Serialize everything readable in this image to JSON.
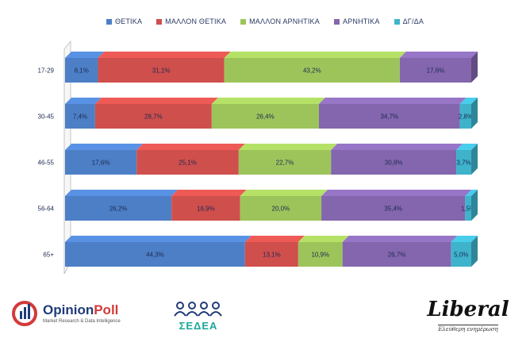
{
  "chart_data": {
    "type": "bar",
    "stacked": true,
    "orientation": "horizontal",
    "percent_scale": true,
    "categories": [
      "17-29",
      "30-45",
      "46-55",
      "56-64",
      "65+"
    ],
    "series": [
      {
        "name": "ΘΕΤΙΚΑ",
        "color": "#4d7fc6",
        "values": [
          8.1,
          7.4,
          17.6,
          26.2,
          44.3
        ],
        "labels": [
          "8,1%",
          "7,4%",
          "17,6%",
          "26,2%",
          "44,3%"
        ]
      },
      {
        "name": "ΜΑΛΛΟΝ ΘΕΤΙΚΑ",
        "color": "#cf4f4c",
        "values": [
          31.1,
          28.7,
          25.1,
          16.9,
          13.1
        ],
        "labels": [
          "31,1%",
          "28,7%",
          "25,1%",
          "16,9%",
          "13,1%"
        ]
      },
      {
        "name": "ΜΑΛΛΟΝ ΑΡΝΗΤΙΚΑ",
        "color": "#9dc45a",
        "values": [
          43.2,
          26.4,
          22.7,
          20.0,
          10.9
        ],
        "labels": [
          "43,2%",
          "26,4%",
          "22,7%",
          "20,0%",
          "10,9%"
        ]
      },
      {
        "name": "ΑΡΝΗΤΙΚΑ",
        "color": "#8366ad",
        "values": [
          17.6,
          34.7,
          30.8,
          35.4,
          26.7
        ],
        "labels": [
          "17,6%",
          "34,7%",
          "30,8%",
          "35,4%",
          "26,7%"
        ]
      },
      {
        "name": "ΔΓ/ΔΑ",
        "color": "#3fb3cc",
        "values": [
          0,
          2.8,
          3.7,
          1.5,
          5.0
        ],
        "labels": [
          "",
          "2,8%",
          "3,7%",
          "1,5%",
          "5,0%"
        ]
      }
    ],
    "legend_position": "top-center",
    "grid": false
  },
  "logos": {
    "opinion_poll": {
      "name_part1": "Opinion",
      "name_part2": "Poll",
      "tagline": "Market Research & Data Intelligence"
    },
    "seaea": {
      "name": "ΣΕΔΕΑ"
    },
    "liberal": {
      "name": "Liberal",
      "tagline": "Ελεύθερη ενημέρωση"
    }
  }
}
